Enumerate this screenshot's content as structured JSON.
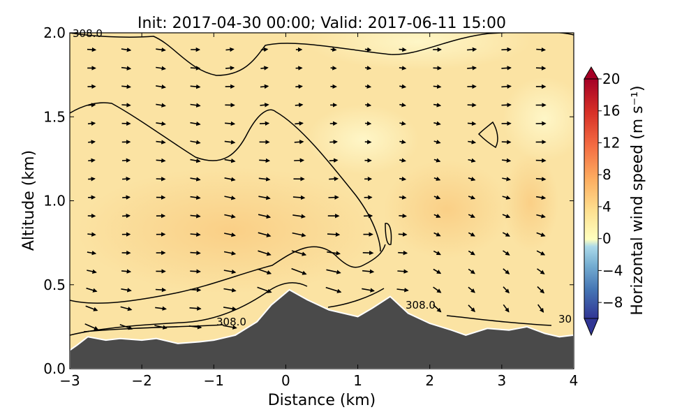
{
  "chart_data": {
    "type": "heatmap",
    "title": "Init: 2017-04-30 00:00; Valid: 2017-06-11 15:00",
    "xlabel": "Distance (km)",
    "ylabel": "Altitude (km)",
    "xlim": [
      -3,
      4
    ],
    "ylim": [
      0,
      2
    ],
    "x_ticks": [
      "−3",
      "−2",
      "−1",
      "0",
      "1",
      "2",
      "3",
      "4"
    ],
    "y_ticks": [
      "0.0",
      "0.5",
      "1.0",
      "1.5",
      "2.0"
    ],
    "colorbar": {
      "label": "Horizontal wind speed (m s⁻¹)",
      "range": [
        -10,
        20
      ],
      "extend": "both",
      "ticks": [
        "−8",
        "−4",
        "0",
        "4",
        "8",
        "12",
        "16",
        "20"
      ],
      "colormap": "RdYlBu_r"
    },
    "contour_labels": [
      "308.0",
      "308.0",
      "308.0",
      "30"
    ],
    "terrain_profile": [
      [
        -3.0,
        0.11
      ],
      [
        -2.9,
        0.14
      ],
      [
        -2.75,
        0.19
      ],
      [
        -2.5,
        0.17
      ],
      [
        -2.3,
        0.18
      ],
      [
        -2.0,
        0.17
      ],
      [
        -1.8,
        0.18
      ],
      [
        -1.5,
        0.15
      ],
      [
        -1.2,
        0.16
      ],
      [
        -1.0,
        0.17
      ],
      [
        -0.7,
        0.2
      ],
      [
        -0.4,
        0.28
      ],
      [
        -0.2,
        0.38
      ],
      [
        0.05,
        0.47
      ],
      [
        0.3,
        0.41
      ],
      [
        0.6,
        0.35
      ],
      [
        1.0,
        0.31
      ],
      [
        1.2,
        0.36
      ],
      [
        1.45,
        0.43
      ],
      [
        1.7,
        0.33
      ],
      [
        2.0,
        0.27
      ],
      [
        2.3,
        0.23
      ],
      [
        2.5,
        0.2
      ],
      [
        2.8,
        0.24
      ],
      [
        3.1,
        0.23
      ],
      [
        3.35,
        0.25
      ],
      [
        3.6,
        0.21
      ],
      [
        3.8,
        0.19
      ],
      [
        4.0,
        0.2
      ]
    ],
    "mean_wind_speed_m_s": 3,
    "terrain_color": "#4a4a4a",
    "background_color": "#fbe3a3",
    "grid": false,
    "legend": "colorbar-right"
  }
}
